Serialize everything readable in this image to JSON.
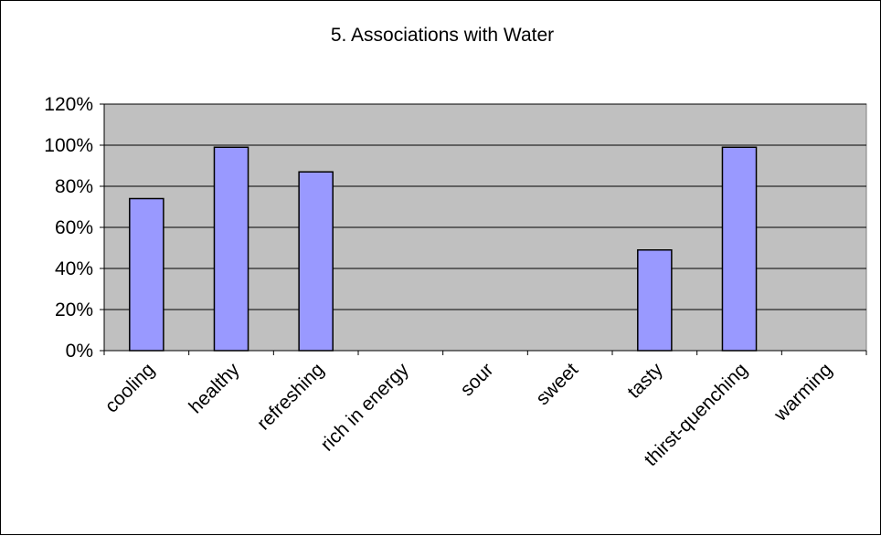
{
  "chart_data": {
    "type": "bar",
    "title": "5. Associations with Water",
    "xlabel": "",
    "ylabel": "",
    "categories": [
      "cooling",
      "healthy",
      "refreshing",
      "rich in energy",
      "sour",
      "sweet",
      "tasty",
      "thirst-quenching",
      "warming"
    ],
    "values": [
      0.74,
      0.99,
      0.87,
      0,
      0,
      0,
      0.49,
      0.99,
      0
    ],
    "ylim": [
      0,
      1.2
    ],
    "yticks": [
      0,
      0.2,
      0.4,
      0.6,
      0.8,
      1.0,
      1.2
    ],
    "ytick_labels": [
      "0%",
      "20%",
      "40%",
      "60%",
      "80%",
      "100%",
      "120%"
    ],
    "grid": true,
    "legend": "none",
    "colors": {
      "plot_background": "#C0C0C0",
      "bar_fill": "#9999FF",
      "bar_stroke": "#000000",
      "gridline": "#000000"
    }
  }
}
